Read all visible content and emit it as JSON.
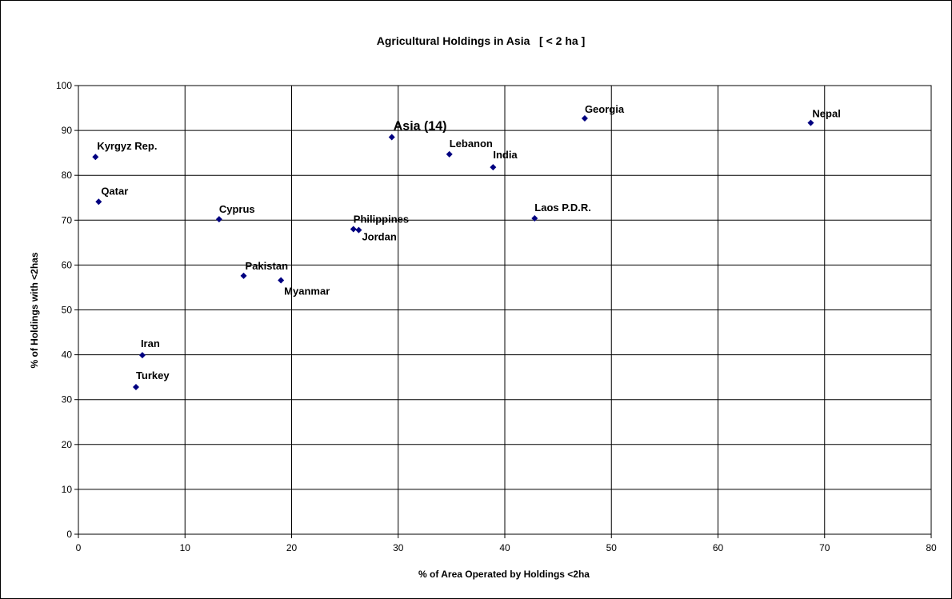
{
  "chart_data": {
    "type": "scatter",
    "title": "Agricultural Holdings in Asia   [ < 2 ha ]",
    "xlabel": "% of Area Operated by Holdings <2ha",
    "ylabel": "% of Holdings with <2has",
    "xlim": [
      0,
      80
    ],
    "ylim": [
      0,
      100
    ],
    "xticks": [
      0,
      10,
      20,
      30,
      40,
      50,
      60,
      70,
      80
    ],
    "yticks": [
      0,
      10,
      20,
      30,
      40,
      50,
      60,
      70,
      80,
      90,
      100
    ],
    "grid": true,
    "marker_color": "#000080",
    "points": [
      {
        "label": "Kyrgyz Rep.",
        "x": 1.6,
        "y": 84.1
      },
      {
        "label": "Qatar",
        "x": 1.9,
        "y": 74.1
      },
      {
        "label": "Cyprus",
        "x": 13.2,
        "y": 70.2
      },
      {
        "label": "Pakistan",
        "x": 15.5,
        "y": 57.6
      },
      {
        "label": "Myanmar",
        "x": 19.0,
        "y": 56.6
      },
      {
        "label": "Iran",
        "x": 6.0,
        "y": 39.9
      },
      {
        "label": "Turkey",
        "x": 5.4,
        "y": 32.8
      },
      {
        "label": "Philippines",
        "x": 25.8,
        "y": 68.0
      },
      {
        "label": "Jordan",
        "x": 26.3,
        "y": 67.8
      },
      {
        "label": "Asia (14)",
        "x": 29.4,
        "y": 88.5
      },
      {
        "label": "Lebanon",
        "x": 34.8,
        "y": 84.7
      },
      {
        "label": "India",
        "x": 38.9,
        "y": 81.8
      },
      {
        "label": "Laos P.D.R.",
        "x": 42.8,
        "y": 70.4
      },
      {
        "label": "Georgia",
        "x": 47.5,
        "y": 92.7
      },
      {
        "label": "Nepal",
        "x": 68.7,
        "y": 91.7
      }
    ]
  }
}
